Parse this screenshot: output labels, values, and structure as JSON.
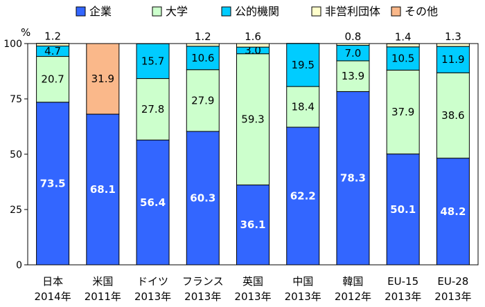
{
  "chart_data": {
    "type": "bar",
    "stacked": true,
    "unit": "%",
    "ylim": [
      0,
      100
    ],
    "y_ticks": [
      "0",
      "25",
      "50",
      "75",
      "100"
    ],
    "categories": [
      {
        "line1": "日本",
        "line2": "2014年"
      },
      {
        "line1": "米国",
        "line2": "2011年"
      },
      {
        "line1": "ドイツ",
        "line2": "2013年"
      },
      {
        "line1": "フランス",
        "line2": "2013年"
      },
      {
        "line1": "英国",
        "line2": "2013年"
      },
      {
        "line1": "中国",
        "line2": "2013年"
      },
      {
        "line1": "韓国",
        "line2": "2012年"
      },
      {
        "line1": "EU-15",
        "line2": "2013年"
      },
      {
        "line1": "EU-28",
        "line2": "2013年"
      }
    ],
    "series": [
      {
        "name": "企業",
        "color": "#3366ff",
        "values": [
          73.5,
          68.1,
          56.4,
          60.3,
          36.1,
          62.2,
          78.3,
          50.1,
          48.2
        ],
        "labels": [
          "73.5",
          "68.1",
          "56.4",
          "60.3",
          "36.1",
          "62.2",
          "78.3",
          "50.1",
          "48.2"
        ]
      },
      {
        "name": "大学",
        "color": "#ccffcc",
        "values": [
          20.7,
          0,
          27.8,
          27.9,
          59.3,
          18.4,
          13.9,
          37.9,
          38.6
        ],
        "labels": [
          "20.7",
          "",
          "27.8",
          "27.9",
          "59.3",
          "18.4",
          "13.9",
          "37.9",
          "38.6"
        ]
      },
      {
        "name": "公的機関",
        "color": "#00ccff",
        "values": [
          4.7,
          0,
          15.7,
          10.6,
          3.0,
          19.5,
          7.0,
          10.5,
          11.9
        ],
        "labels": [
          "4.7",
          "",
          "15.7",
          "10.6",
          "3.0",
          "19.5",
          "7.0",
          "10.5",
          "11.9"
        ]
      },
      {
        "name": "非営利団体",
        "color": "#ffffcc",
        "values": [
          1.2,
          0,
          0,
          1.2,
          1.6,
          0,
          0.8,
          1.4,
          1.3
        ],
        "labels": [
          "1.2",
          "",
          "",
          "1.2",
          "1.6",
          "",
          "0.8",
          "1.4",
          "1.3"
        ]
      },
      {
        "name": "その他",
        "color": "#fab88a",
        "values": [
          0,
          31.9,
          0,
          0,
          0,
          0,
          0,
          0,
          0
        ],
        "labels": [
          "",
          "31.9",
          "",
          "",
          "",
          "",
          "",
          "",
          ""
        ]
      }
    ]
  }
}
